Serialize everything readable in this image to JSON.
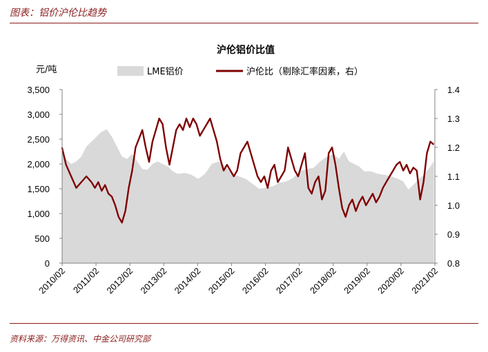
{
  "header": {
    "title": "图表：铝价沪伦比趋势"
  },
  "footer": {
    "source": "资料来源：万得资讯、中金公司研究部"
  },
  "chart_data": {
    "type": "area+line",
    "title": "沪伦铝价比值",
    "y_left_unit": "元/吨",
    "y_left_range": [
      0,
      3500
    ],
    "y_left_ticks": [
      "0",
      "500",
      "1,000",
      "1,500",
      "2,000",
      "2,500",
      "3,000",
      "3,500"
    ],
    "y_right_range": [
      0.8,
      1.4
    ],
    "y_right_ticks": [
      "0.8",
      "0.9",
      "1.0",
      "1.1",
      "1.2",
      "1.3",
      "1.4"
    ],
    "x_range": [
      2010.0833,
      2021.0833
    ],
    "x_ticks": [
      "2010/02",
      "2011/02",
      "2012/02",
      "2013/02",
      "2014/02",
      "2015/02",
      "2016/02",
      "2017/02",
      "2018/02",
      "2019/02",
      "2020/02",
      "2021/02"
    ],
    "colors": {
      "area": "#d9d9d9",
      "line": "#7f0000",
      "accent": "#8a1c1c"
    },
    "series": [
      {
        "name": "LME铝价",
        "axis": "left",
        "style": "area",
        "x": [
          2010.08,
          2010.2,
          2010.35,
          2010.5,
          2010.65,
          2010.8,
          2010.95,
          2011.1,
          2011.25,
          2011.4,
          2011.55,
          2011.7,
          2011.85,
          2012.0,
          2012.15,
          2012.3,
          2012.45,
          2012.6,
          2012.75,
          2012.9,
          2013.05,
          2013.2,
          2013.35,
          2013.5,
          2013.7,
          2013.9,
          2014.1,
          2014.3,
          2014.5,
          2014.7,
          2014.9,
          2015.1,
          2015.3,
          2015.5,
          2015.7,
          2015.9,
          2016.1,
          2016.3,
          2016.5,
          2016.7,
          2016.9,
          2017.1,
          2017.3,
          2017.5,
          2017.7,
          2017.9,
          2018.1,
          2018.25,
          2018.4,
          2018.55,
          2018.7,
          2018.85,
          2019.0,
          2019.2,
          2019.4,
          2019.6,
          2019.8,
          2020.0,
          2020.15,
          2020.3,
          2020.45,
          2020.6,
          2020.75,
          2020.9,
          2021.05
        ],
        "values": [
          2300,
          2100,
          2000,
          2050,
          2150,
          2350,
          2450,
          2550,
          2650,
          2700,
          2550,
          2350,
          2150,
          2100,
          2200,
          2050,
          1900,
          1880,
          2000,
          2050,
          2000,
          1950,
          1850,
          1800,
          1820,
          1780,
          1700,
          1800,
          2000,
          2050,
          1950,
          1800,
          1750,
          1700,
          1600,
          1500,
          1520,
          1550,
          1620,
          1650,
          1720,
          1850,
          1900,
          1920,
          2050,
          2150,
          2200,
          2100,
          2250,
          2050,
          2000,
          1950,
          1850,
          1850,
          1800,
          1780,
          1750,
          1700,
          1650,
          1480,
          1580,
          1680,
          1780,
          1900,
          2050
        ]
      },
      {
        "name": "沪伦比（剔除汇率因素，右）",
        "axis": "right",
        "style": "line",
        "x": [
          2010.08,
          2010.2,
          2010.35,
          2010.5,
          2010.65,
          2010.8,
          2010.95,
          2011.05,
          2011.15,
          2011.25,
          2011.35,
          2011.45,
          2011.55,
          2011.65,
          2011.75,
          2011.85,
          2011.95,
          2012.05,
          2012.15,
          2012.25,
          2012.35,
          2012.45,
          2012.55,
          2012.65,
          2012.75,
          2012.85,
          2012.95,
          2013.05,
          2013.15,
          2013.25,
          2013.35,
          2013.45,
          2013.55,
          2013.65,
          2013.75,
          2013.85,
          2013.95,
          2014.05,
          2014.15,
          2014.25,
          2014.35,
          2014.45,
          2014.55,
          2014.65,
          2014.75,
          2014.85,
          2014.95,
          2015.05,
          2015.15,
          2015.25,
          2015.35,
          2015.45,
          2015.55,
          2015.65,
          2015.75,
          2015.85,
          2015.95,
          2016.05,
          2016.15,
          2016.25,
          2016.35,
          2016.45,
          2016.55,
          2016.65,
          2016.75,
          2016.85,
          2016.95,
          2017.05,
          2017.15,
          2017.25,
          2017.35,
          2017.45,
          2017.55,
          2017.65,
          2017.75,
          2017.85,
          2017.95,
          2018.05,
          2018.15,
          2018.25,
          2018.35,
          2018.45,
          2018.55,
          2018.65,
          2018.75,
          2018.85,
          2018.95,
          2019.05,
          2019.15,
          2019.25,
          2019.35,
          2019.45,
          2019.55,
          2019.65,
          2019.75,
          2019.85,
          2019.95,
          2020.05,
          2020.15,
          2020.25,
          2020.35,
          2020.45,
          2020.55,
          2020.65,
          2020.75,
          2020.85,
          2020.95,
          2021.05
        ],
        "values": [
          1.2,
          1.14,
          1.1,
          1.06,
          1.08,
          1.1,
          1.08,
          1.06,
          1.08,
          1.05,
          1.07,
          1.04,
          1.03,
          1.0,
          0.96,
          0.94,
          0.98,
          1.06,
          1.12,
          1.2,
          1.23,
          1.26,
          1.2,
          1.15,
          1.22,
          1.26,
          1.3,
          1.28,
          1.2,
          1.14,
          1.2,
          1.26,
          1.28,
          1.26,
          1.3,
          1.27,
          1.3,
          1.28,
          1.24,
          1.26,
          1.28,
          1.3,
          1.26,
          1.22,
          1.16,
          1.12,
          1.14,
          1.12,
          1.1,
          1.12,
          1.18,
          1.2,
          1.22,
          1.18,
          1.14,
          1.1,
          1.08,
          1.1,
          1.06,
          1.12,
          1.14,
          1.08,
          1.1,
          1.12,
          1.2,
          1.16,
          1.12,
          1.1,
          1.14,
          1.18,
          1.06,
          1.04,
          1.08,
          1.1,
          1.02,
          1.05,
          1.18,
          1.2,
          1.14,
          1.06,
          0.99,
          0.96,
          1.0,
          1.02,
          0.98,
          1.01,
          1.03,
          1.0,
          1.02,
          1.04,
          1.01,
          1.03,
          1.06,
          1.08,
          1.1,
          1.12,
          1.14,
          1.15,
          1.12,
          1.14,
          1.11,
          1.13,
          1.12,
          1.02,
          1.08,
          1.18,
          1.22,
          1.21
        ]
      }
    ]
  }
}
